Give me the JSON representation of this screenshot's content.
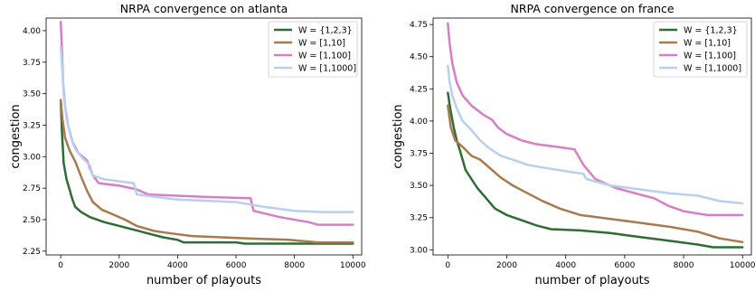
{
  "chart_data": [
    {
      "type": "line",
      "title": "NRPA convergence on atlanta",
      "xlabel": "number of playouts",
      "ylabel": "congestion",
      "xlim": [
        -500,
        10300
      ],
      "ylim": [
        2.22,
        4.1
      ],
      "xticks": [
        0,
        2000,
        4000,
        6000,
        8000,
        10000
      ],
      "xtick_labels": [
        "0",
        "2000",
        "4000",
        "6000",
        "8000",
        "10000"
      ],
      "yticks": [
        2.25,
        2.5,
        2.75,
        3.0,
        3.25,
        3.5,
        3.75,
        4.0
      ],
      "ytick_labels": [
        "2.25",
        "2.50",
        "2.75",
        "3.00",
        "3.25",
        "3.50",
        "3.75",
        "4.00"
      ],
      "grid": false,
      "legend_position": "top-right",
      "series": [
        {
          "name": "W = {1,2,3}",
          "color": "#2e6e35",
          "points": [
            [
              0,
              3.45
            ],
            [
              40,
              3.2
            ],
            [
              100,
              2.95
            ],
            [
              200,
              2.82
            ],
            [
              300,
              2.74
            ],
            [
              400,
              2.66
            ],
            [
              500,
              2.6
            ],
            [
              700,
              2.56
            ],
            [
              1000,
              2.52
            ],
            [
              1500,
              2.48
            ],
            [
              2000,
              2.45
            ],
            [
              2500,
              2.42
            ],
            [
              3000,
              2.39
            ],
            [
              3500,
              2.36
            ],
            [
              4000,
              2.34
            ],
            [
              4200,
              2.32
            ],
            [
              6000,
              2.32
            ],
            [
              6300,
              2.31
            ],
            [
              8000,
              2.31
            ],
            [
              10000,
              2.31
            ]
          ]
        },
        {
          "name": "W = [1,10]",
          "color": "#a87b4f",
          "points": [
            [
              0,
              3.45
            ],
            [
              60,
              3.3
            ],
            [
              150,
              3.15
            ],
            [
              300,
              3.05
            ],
            [
              500,
              2.96
            ],
            [
              700,
              2.84
            ],
            [
              900,
              2.73
            ],
            [
              1100,
              2.64
            ],
            [
              1400,
              2.58
            ],
            [
              1800,
              2.54
            ],
            [
              2200,
              2.5
            ],
            [
              2600,
              2.45
            ],
            [
              3200,
              2.41
            ],
            [
              3800,
              2.39
            ],
            [
              4500,
              2.37
            ],
            [
              5500,
              2.36
            ],
            [
              6500,
              2.35
            ],
            [
              7800,
              2.34
            ],
            [
              8800,
              2.32
            ],
            [
              10000,
              2.32
            ]
          ]
        },
        {
          "name": "W = [1,100]",
          "color": "#d67fc7",
          "points": [
            [
              0,
              4.07
            ],
            [
              40,
              3.85
            ],
            [
              80,
              3.6
            ],
            [
              150,
              3.4
            ],
            [
              250,
              3.25
            ],
            [
              400,
              3.12
            ],
            [
              600,
              3.03
            ],
            [
              900,
              2.97
            ],
            [
              1100,
              2.85
            ],
            [
              1300,
              2.79
            ],
            [
              2000,
              2.77
            ],
            [
              2600,
              2.74
            ],
            [
              3000,
              2.7
            ],
            [
              4000,
              2.69
            ],
            [
              5000,
              2.68
            ],
            [
              6500,
              2.67
            ],
            [
              6600,
              2.57
            ],
            [
              7500,
              2.52
            ],
            [
              8500,
              2.48
            ],
            [
              8800,
              2.46
            ],
            [
              10000,
              2.46
            ]
          ]
        },
        {
          "name": "W = [1,1000]",
          "color": "#b8d0ee",
          "points": [
            [
              0,
              3.87
            ],
            [
              50,
              3.7
            ],
            [
              100,
              3.5
            ],
            [
              200,
              3.3
            ],
            [
              350,
              3.15
            ],
            [
              500,
              3.06
            ],
            [
              700,
              3.0
            ],
            [
              1000,
              2.93
            ],
            [
              1100,
              2.85
            ],
            [
              1500,
              2.82
            ],
            [
              2500,
              2.79
            ],
            [
              2600,
              2.7
            ],
            [
              4000,
              2.66
            ],
            [
              5000,
              2.65
            ],
            [
              6000,
              2.64
            ],
            [
              6500,
              2.62
            ],
            [
              7000,
              2.6
            ],
            [
              8000,
              2.57
            ],
            [
              9000,
              2.56
            ],
            [
              10000,
              2.56
            ]
          ]
        }
      ]
    },
    {
      "type": "line",
      "title": "NRPA convergence on france",
      "xlabel": "number of playouts",
      "ylabel": "congestion",
      "xlim": [
        -500,
        10300
      ],
      "ylim": [
        2.96,
        4.8
      ],
      "xticks": [
        0,
        2000,
        4000,
        6000,
        8000,
        10000
      ],
      "xtick_labels": [
        "0",
        "2000",
        "4000",
        "6000",
        "8000",
        "10000"
      ],
      "yticks": [
        3.0,
        3.25,
        3.5,
        3.75,
        4.0,
        4.25,
        4.5,
        4.75
      ],
      "ytick_labels": [
        "3.00",
        "3.25",
        "3.50",
        "3.75",
        "4.00",
        "4.25",
        "4.50",
        "4.75"
      ],
      "grid": false,
      "legend_position": "top-right",
      "series": [
        {
          "name": "W = {1,2,3}",
          "color": "#2e6e35",
          "points": [
            [
              0,
              4.22
            ],
            [
              80,
              4.1
            ],
            [
              200,
              3.95
            ],
            [
              300,
              3.85
            ],
            [
              400,
              3.78
            ],
            [
              500,
              3.7
            ],
            [
              600,
              3.62
            ],
            [
              800,
              3.55
            ],
            [
              1000,
              3.48
            ],
            [
              1300,
              3.4
            ],
            [
              1600,
              3.32
            ],
            [
              2000,
              3.27
            ],
            [
              2500,
              3.23
            ],
            [
              3000,
              3.19
            ],
            [
              3500,
              3.16
            ],
            [
              4500,
              3.15
            ],
            [
              5500,
              3.13
            ],
            [
              6500,
              3.1
            ],
            [
              7500,
              3.07
            ],
            [
              8500,
              3.04
            ],
            [
              9000,
              3.02
            ],
            [
              10000,
              3.02
            ]
          ]
        },
        {
          "name": "W = [1,10]",
          "color": "#a87b4f",
          "points": [
            [
              0,
              4.12
            ],
            [
              100,
              3.95
            ],
            [
              250,
              3.85
            ],
            [
              500,
              3.8
            ],
            [
              800,
              3.73
            ],
            [
              1100,
              3.7
            ],
            [
              1400,
              3.64
            ],
            [
              1800,
              3.56
            ],
            [
              2200,
              3.5
            ],
            [
              2700,
              3.44
            ],
            [
              3200,
              3.38
            ],
            [
              3800,
              3.32
            ],
            [
              4500,
              3.27
            ],
            [
              5500,
              3.24
            ],
            [
              6500,
              3.21
            ],
            [
              7500,
              3.18
            ],
            [
              8500,
              3.14
            ],
            [
              9200,
              3.09
            ],
            [
              10000,
              3.06
            ]
          ]
        },
        {
          "name": "W = [1,100]",
          "color": "#d67fc7",
          "points": [
            [
              0,
              4.76
            ],
            [
              60,
              4.6
            ],
            [
              150,
              4.45
            ],
            [
              300,
              4.3
            ],
            [
              500,
              4.2
            ],
            [
              800,
              4.12
            ],
            [
              1200,
              4.05
            ],
            [
              1500,
              4.01
            ],
            [
              1700,
              3.95
            ],
            [
              2000,
              3.9
            ],
            [
              2500,
              3.85
            ],
            [
              3000,
              3.82
            ],
            [
              3700,
              3.8
            ],
            [
              4300,
              3.78
            ],
            [
              4600,
              3.66
            ],
            [
              5000,
              3.55
            ],
            [
              5700,
              3.48
            ],
            [
              6500,
              3.43
            ],
            [
              7000,
              3.4
            ],
            [
              7500,
              3.34
            ],
            [
              8000,
              3.3
            ],
            [
              8800,
              3.27
            ],
            [
              10000,
              3.27
            ]
          ]
        },
        {
          "name": "W = [1,1000]",
          "color": "#b8d0ee",
          "points": [
            [
              0,
              4.43
            ],
            [
              60,
              4.3
            ],
            [
              150,
              4.2
            ],
            [
              300,
              4.1
            ],
            [
              500,
              4.0
            ],
            [
              800,
              3.93
            ],
            [
              1100,
              3.85
            ],
            [
              1400,
              3.79
            ],
            [
              1800,
              3.73
            ],
            [
              2200,
              3.7
            ],
            [
              2700,
              3.66
            ],
            [
              3200,
              3.64
            ],
            [
              4000,
              3.61
            ],
            [
              4600,
              3.59
            ],
            [
              4700,
              3.55
            ],
            [
              5500,
              3.5
            ],
            [
              6500,
              3.47
            ],
            [
              7500,
              3.44
            ],
            [
              8500,
              3.42
            ],
            [
              9200,
              3.38
            ],
            [
              10000,
              3.36
            ]
          ]
        }
      ]
    }
  ]
}
